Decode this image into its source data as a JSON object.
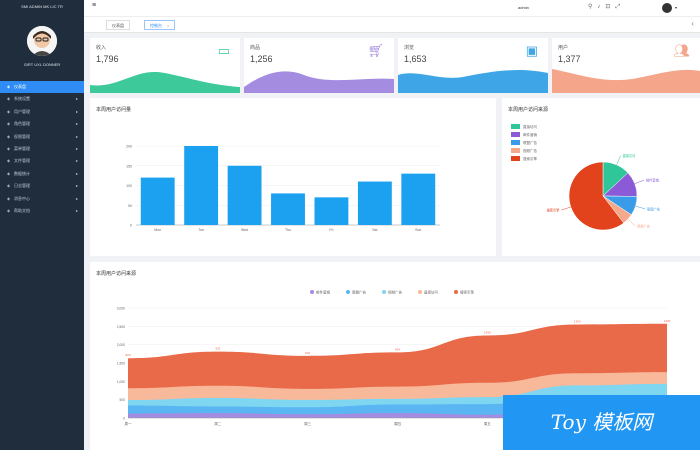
{
  "sidebar": {
    "brand": "SMI ADMIN MK LIC TR",
    "username": "GIRT UXL DONNER",
    "items": [
      {
        "label": "仪表盘",
        "active": true
      },
      {
        "label": "系统设置",
        "active": false
      },
      {
        "label": "用户管理",
        "active": false
      },
      {
        "label": "角色管理",
        "active": false
      },
      {
        "label": "权限管理",
        "active": false
      },
      {
        "label": "菜单管理",
        "active": false
      },
      {
        "label": "文件管理",
        "active": false
      },
      {
        "label": "数据统计",
        "active": false
      },
      {
        "label": "日志管理",
        "active": false
      },
      {
        "label": "消息中心",
        "active": false
      },
      {
        "label": "帮助文档",
        "active": false
      }
    ]
  },
  "topbar": {
    "username": "admin"
  },
  "tabs": [
    {
      "label": "仪表盘",
      "active": false
    },
    {
      "label": "控制台",
      "active": true
    }
  ],
  "stats": [
    {
      "label": "收入",
      "value": "1,796",
      "icon": "money-icon",
      "color": "#3ec99b"
    },
    {
      "label": "商品",
      "value": "1,256",
      "icon": "cart-icon",
      "color": "#a48ce0"
    },
    {
      "label": "浏览",
      "value": "1,653",
      "icon": "calendar-icon",
      "color": "#3ea6e6"
    },
    {
      "label": "用户",
      "value": "1,377",
      "icon": "users-icon",
      "color": "#f4a58a"
    }
  ],
  "bar_panel": {
    "title": "本周用户访问量"
  },
  "pie_panel": {
    "title": "本周用户访问来源"
  },
  "area_panel": {
    "title": "本周用户访问来源"
  },
  "watermark": "Toy 模板网",
  "chart_data": [
    {
      "type": "bar",
      "title": "本周用户访问量",
      "categories": [
        "Mon",
        "Tue",
        "Wed",
        "Thu",
        "Fri",
        "Sat",
        "Sun"
      ],
      "values": [
        120,
        200,
        150,
        80,
        70,
        110,
        130
      ],
      "ylim": [
        0,
        200
      ],
      "yticks": [
        "0",
        "50",
        "100",
        "150",
        "200"
      ],
      "color": "#1ba1ef",
      "grid": true
    },
    {
      "type": "pie",
      "title": "本周用户访问来源",
      "legend_position": "top-left",
      "slices": [
        {
          "name": "直接访问",
          "value": 335,
          "color": "#2fc69a"
        },
        {
          "name": "邮件营销",
          "value": 310,
          "color": "#8b5ad6"
        },
        {
          "name": "联盟广告",
          "value": 234,
          "color": "#3a9be8"
        },
        {
          "name": "视频广告",
          "value": 135,
          "color": "#f4a98b"
        },
        {
          "name": "搜索引擎",
          "value": 1548,
          "color": "#e2421c"
        }
      ]
    },
    {
      "type": "area",
      "title": "本周用户访问来源",
      "legend_position": "top-center",
      "x": [
        "周一",
        "周二",
        "周三",
        "周四",
        "周五",
        "周六",
        "周日"
      ],
      "ylim": [
        0,
        3000
      ],
      "yticks": [
        "0",
        "500",
        "1,000",
        "1,500",
        "2,000",
        "2,500",
        "3,000"
      ],
      "stacked": true,
      "series": [
        {
          "name": "邮件营销",
          "values": [
            120,
            132,
            101,
            134,
            90,
            230,
            210
          ],
          "color": "#a48ce0"
        },
        {
          "name": "联盟广告",
          "values": [
            220,
            182,
            191,
            234,
            290,
            330,
            310
          ],
          "color": "#59b6f2"
        },
        {
          "name": "视频广告",
          "values": [
            150,
            232,
            201,
            154,
            190,
            330,
            410
          ],
          "color": "#7fd6f0"
        },
        {
          "name": "直接访问",
          "values": [
            320,
            332,
            301,
            334,
            390,
            330,
            320
          ],
          "color": "#f8b89a"
        },
        {
          "name": "搜索引擎",
          "values": [
            820,
            932,
            901,
            934,
            1290,
            1330,
            1320
          ],
          "color": "#e96a48"
        }
      ],
      "labels_on": "搜索引擎"
    }
  ]
}
